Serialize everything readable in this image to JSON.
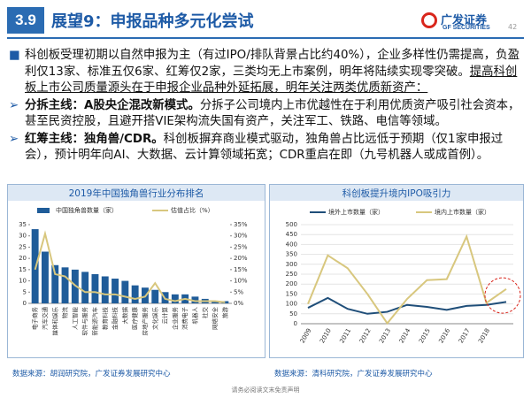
{
  "header": {
    "section": "3.9",
    "title": "展望9：申报品种多元化尝试",
    "logo": "广发证券",
    "logo_en": "GF SECURITIES",
    "page": "42"
  },
  "paragraphs": [
    {
      "text": "科创板受理初期以自然申报为主（有过IPO/排队背景占比约40%），企业多样性仍需提高，负盈利仅13家、标准五仅6家、红筹仅2家，三类均无上市案例，明年将陆续实现零突破。",
      "underlined": "提高科创板上市公司质量源头在于申报企业品种外延拓展，明年关注两类优质新资产："
    },
    {
      "lead": "分拆主线：A股央企混改新模式。",
      "text": "分拆子公司境内上市优越性在于利用优质资产吸引社会资本，甚至民资控股，且避开搭VIE架构流失国有资产，关注军工、铁路、电信等领域。"
    },
    {
      "lead": "红筹主线：独角兽/CDR。",
      "text": "科创板摒弃商业模式驱动，独角兽占比远低于预期（仅1家申报过会），预计明年向AI、大数据、云计算领域拓宽；CDR重启在即（九号机器人或成首例）。"
    }
  ],
  "chart_data": [
    {
      "type": "bar",
      "title": "2019年中国独角兽行业分布排名",
      "categories": [
        "电子商务",
        "汽车交通",
        "媒体和娱乐",
        "物流",
        "人工智能",
        "软件与服务",
        "新能源汽车",
        "教育科技",
        "金融科技",
        "大数据",
        "医疗健康",
        "房地产服务",
        "文化娱乐",
        "云计算",
        "企业服务",
        "消费电子",
        "机器人",
        "社交",
        "网络安全",
        "旅游"
      ],
      "series": [
        {
          "name": "中国独角兽数量（家）",
          "color": "#1f5c99",
          "values": [
            33,
            23,
            17,
            16,
            15,
            14,
            13,
            12,
            11,
            10,
            8,
            7,
            6,
            5,
            4,
            4,
            3,
            2,
            1,
            1
          ]
        },
        {
          "name": "估值占比（%）",
          "color": "#d8c77e",
          "axis": "y2",
          "type": "line",
          "values": [
            15,
            31,
            13,
            12,
            8,
            5,
            5,
            4,
            4,
            3,
            2,
            3,
            9,
            2,
            1,
            2,
            1,
            1,
            1,
            0.5
          ]
        }
      ],
      "ylim": [
        0,
        35
      ],
      "yticks": [
        0,
        5,
        10,
        15,
        20,
        25,
        30,
        35
      ],
      "y2lim": [
        0,
        35
      ],
      "y2ticks": [
        {
          "value": 0,
          "label": "0%"
        },
        {
          "value": 5,
          "label": "5%"
        },
        {
          "value": 10,
          "label": "10%"
        },
        {
          "value": 15,
          "label": "15%"
        },
        {
          "value": 20,
          "label": "20%"
        },
        {
          "value": 25,
          "label": "25%"
        },
        {
          "value": 30,
          "label": "30%"
        },
        {
          "value": 35,
          "label": "35%"
        }
      ]
    },
    {
      "type": "line",
      "title": "科创板提升境内IPO吸引力",
      "categories": [
        "2009",
        "2010",
        "2011",
        "2012",
        "2013",
        "2014",
        "2015",
        "2016",
        "2017",
        "2018",
        null
      ],
      "series": [
        {
          "name": "境外上市数量（家）",
          "color": "#1f4e79",
          "values": [
            80,
            130,
            75,
            50,
            60,
            95,
            85,
            70,
            90,
            95,
            110
          ]
        },
        {
          "name": "境内上市数量（家）",
          "color": "#d8c77e",
          "values": [
            100,
            345,
            280,
            150,
            2,
            125,
            220,
            225,
            440,
            105,
            175
          ]
        }
      ],
      "ylim": [
        0,
        500
      ],
      "yticks": [
        0,
        50,
        100,
        150,
        200,
        250,
        300,
        350,
        400,
        450,
        500
      ]
    }
  ],
  "sources": [
    "数据来源：胡润研究院，广发证券发展研究中心",
    "数据来源：清科研究院，广发证券发展研究中心"
  ],
  "footer": "请务必阅读文末免责声明"
}
